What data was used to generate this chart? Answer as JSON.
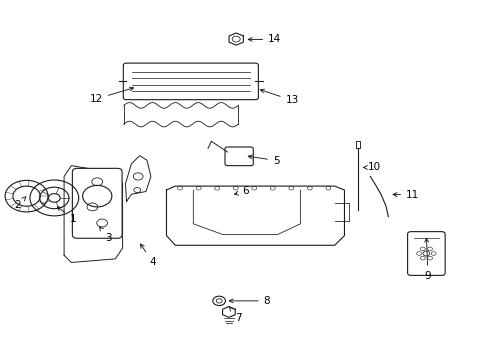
{
  "background_color": "#ffffff",
  "line_color": "#1a1a1a",
  "text_color": "#000000",
  "fig_width": 4.89,
  "fig_height": 3.6,
  "dpi": 100,
  "font_size": 7.5,
  "line_width": 0.8,
  "labels": {
    "1": [
      0.148,
      0.392,
      0.11,
      0.432
    ],
    "2": [
      0.034,
      0.43,
      0.053,
      0.455
    ],
    "3": [
      0.22,
      0.338,
      0.198,
      0.378
    ],
    "4": [
      0.312,
      0.272,
      0.282,
      0.33
    ],
    "5": [
      0.565,
      0.554,
      0.5,
      0.568
    ],
    "6": [
      0.502,
      0.468,
      0.472,
      0.458
    ],
    "7": [
      0.487,
      0.116,
      0.468,
      0.148
    ],
    "8": [
      0.546,
      0.163,
      0.461,
      0.163
    ],
    "9": [
      0.876,
      0.233,
      0.873,
      0.348
    ],
    "10": [
      0.766,
      0.535,
      0.742,
      0.535
    ],
    "11": [
      0.845,
      0.458,
      0.797,
      0.46
    ],
    "12": [
      0.196,
      0.726,
      0.28,
      0.76
    ],
    "13": [
      0.598,
      0.722,
      0.525,
      0.755
    ],
    "14": [
      0.562,
      0.892,
      0.5,
      0.892
    ]
  }
}
